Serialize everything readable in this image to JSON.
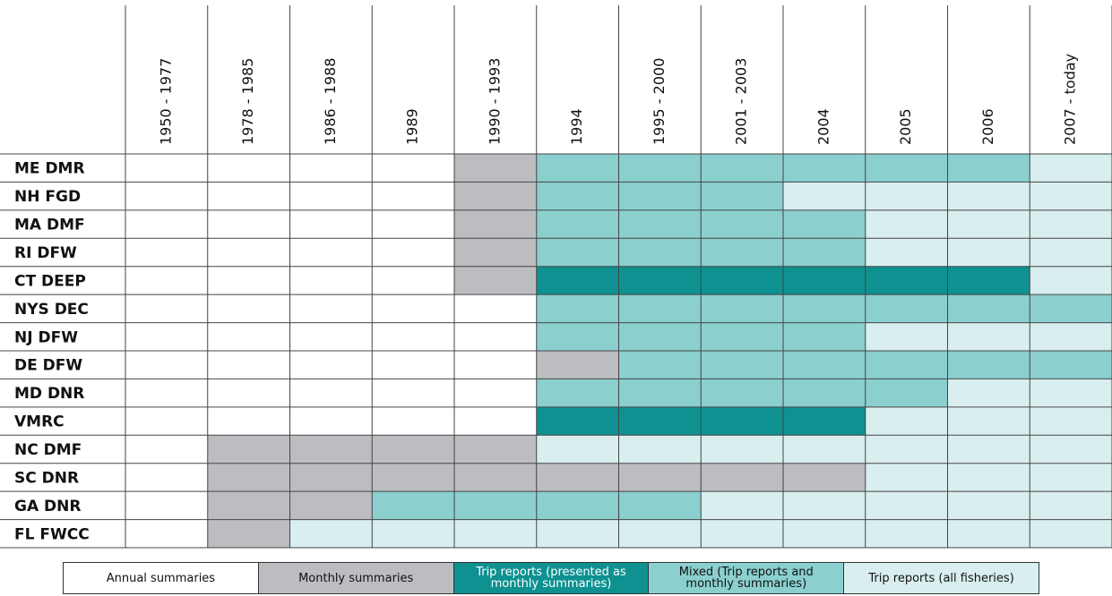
{
  "columns": [
    "1950 - 1977",
    "1978 - 1985",
    "1986 - 1988",
    "1989",
    "1990 - 1993",
    "1994",
    "1995 - 2000",
    "2001 - 2003",
    "2004",
    "2005",
    "2006",
    "2007 - today"
  ],
  "legend": [
    {
      "label": "Annual summaries",
      "color": "#ffffff"
    },
    {
      "label": "Monthly summaries",
      "color": "#bcbdc0"
    },
    {
      "label": "Trip reports (presented as monthly summaries)",
      "color": "#0e9190",
      "text_color": "#ffffff"
    },
    {
      "label": "Mixed (Trip reports and monthly summaries)",
      "color": "#8bcfcf"
    },
    {
      "label": "Trip reports (all fisheries)",
      "color": "#d9eeee"
    }
  ],
  "rows": [
    {
      "label": "ME DMR",
      "cells": [
        0,
        0,
        0,
        0,
        1,
        3,
        3,
        3,
        3,
        3,
        3,
        4
      ]
    },
    {
      "label": "NH FGD",
      "cells": [
        0,
        0,
        0,
        0,
        1,
        3,
        3,
        3,
        4,
        4,
        4,
        4
      ]
    },
    {
      "label": "MA DMF",
      "cells": [
        0,
        0,
        0,
        0,
        1,
        3,
        3,
        3,
        3,
        4,
        4,
        4
      ]
    },
    {
      "label": "RI DFW",
      "cells": [
        0,
        0,
        0,
        0,
        1,
        3,
        3,
        3,
        3,
        4,
        4,
        4
      ]
    },
    {
      "label": "CT DEEP",
      "cells": [
        0,
        0,
        0,
        0,
        1,
        2,
        2,
        2,
        2,
        2,
        2,
        4
      ]
    },
    {
      "label": "NYS DEC",
      "cells": [
        0,
        0,
        0,
        0,
        0,
        3,
        3,
        3,
        3,
        3,
        3,
        3
      ]
    },
    {
      "label": "NJ DFW",
      "cells": [
        0,
        0,
        0,
        0,
        0,
        3,
        3,
        3,
        3,
        4,
        4,
        4
      ]
    },
    {
      "label": "DE DFW",
      "cells": [
        0,
        0,
        0,
        0,
        0,
        1,
        3,
        3,
        3,
        3,
        3,
        3
      ]
    },
    {
      "label": "MD DNR",
      "cells": [
        0,
        0,
        0,
        0,
        0,
        3,
        3,
        3,
        3,
        3,
        4,
        4
      ]
    },
    {
      "label": "VMRC",
      "cells": [
        0,
        0,
        0,
        0,
        0,
        2,
        2,
        2,
        2,
        4,
        4,
        4
      ]
    },
    {
      "label": "NC DMF",
      "cells": [
        0,
        1,
        1,
        1,
        1,
        4,
        4,
        4,
        4,
        4,
        4,
        4
      ]
    },
    {
      "label": "SC DNR",
      "cells": [
        0,
        1,
        1,
        1,
        1,
        1,
        1,
        1,
        1,
        4,
        4,
        4
      ]
    },
    {
      "label": "GA DNR",
      "cells": [
        0,
        1,
        1,
        3,
        3,
        3,
        3,
        4,
        4,
        4,
        4,
        4
      ]
    },
    {
      "label": "FL FWCC",
      "cells": [
        0,
        1,
        4,
        4,
        4,
        4,
        4,
        4,
        4,
        4,
        4,
        4
      ]
    }
  ]
}
